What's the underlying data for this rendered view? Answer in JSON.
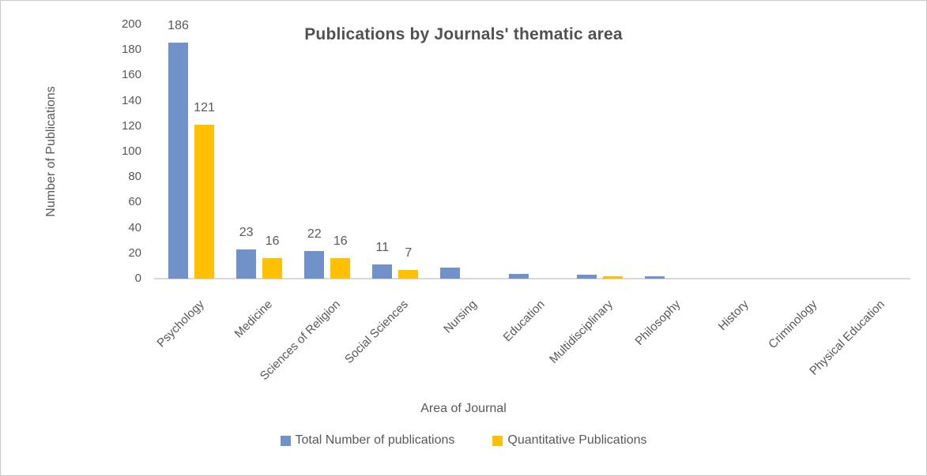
{
  "window": {
    "background": "#ffffff",
    "border_color": "#c9c9c9",
    "text_color": "#595959"
  },
  "chart_data": {
    "type": "bar",
    "title": "Publications by Journals' thematic area",
    "xlabel": "Area of Journal",
    "ylabel": "Number of Publications",
    "ylim": [
      0,
      200
    ],
    "yticks": [
      0,
      20,
      40,
      60,
      80,
      100,
      120,
      140,
      160,
      180,
      200
    ],
    "grid": false,
    "legend_position": "bottom",
    "categories": [
      "Psychology",
      "Medicine",
      "Sciences of Religion",
      "Social Sciences",
      "Nursing",
      "Education",
      "Multidisciplinary",
      "Philosophy",
      "History",
      "Criminology",
      "Physical Education"
    ],
    "series": [
      {
        "name": "Total Number of publications",
        "color": "#7191CB",
        "values": [
          186,
          23,
          22,
          11,
          9,
          4,
          3,
          2,
          0,
          0,
          0
        ],
        "data_labels": [
          "186",
          "23",
          "22",
          "11",
          "",
          "",
          "",
          "",
          "",
          "",
          ""
        ]
      },
      {
        "name": "Quantitative Publications",
        "color": "#FFC000",
        "values": [
          121,
          16,
          16,
          7,
          0,
          0,
          2,
          0,
          0,
          0,
          0
        ],
        "data_labels": [
          "121",
          "16",
          "16",
          "7",
          "",
          "",
          "",
          "",
          "",
          "",
          ""
        ]
      }
    ]
  }
}
